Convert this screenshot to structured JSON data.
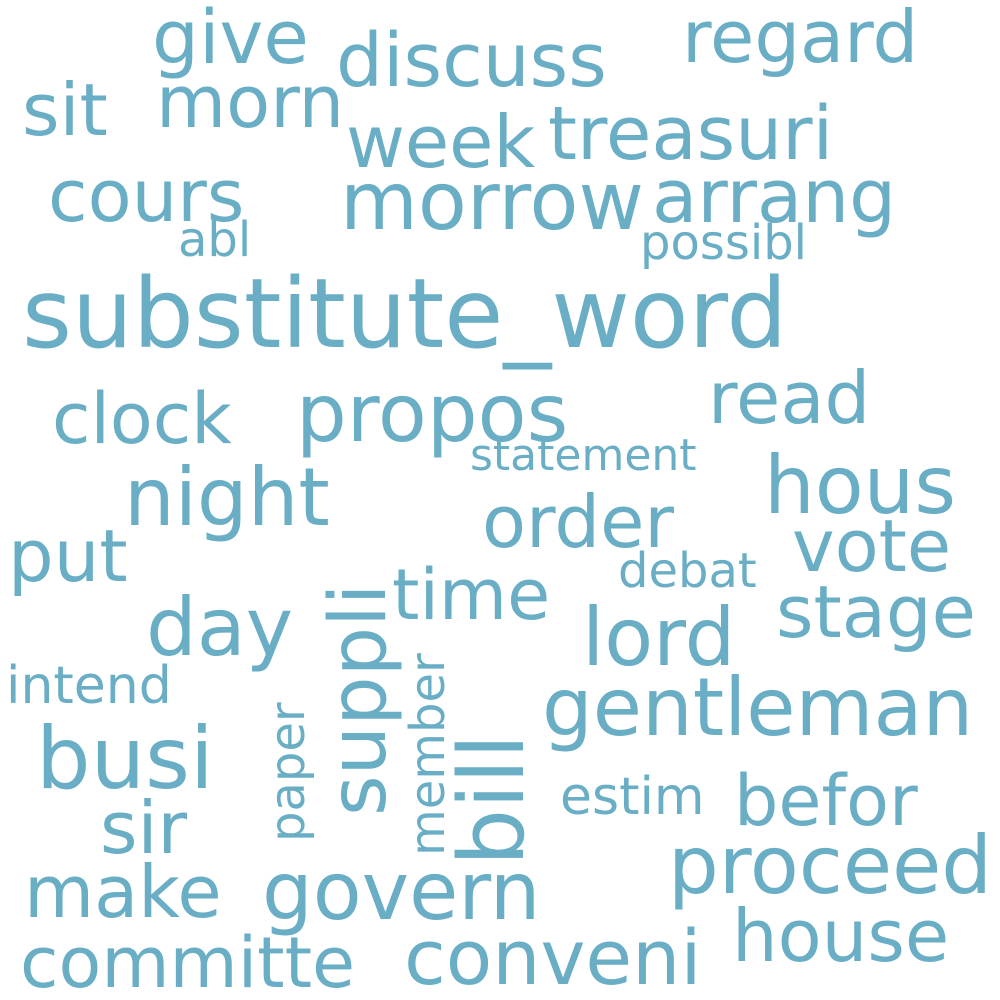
{
  "color": "#6aaec6",
  "words": [
    {
      "id": "substitute_word",
      "text": "substitute_word"
    },
    {
      "id": "discuss",
      "text": "discuss"
    },
    {
      "id": "regard",
      "text": "regard"
    },
    {
      "id": "give",
      "text": "give"
    },
    {
      "id": "sit",
      "text": "sit"
    },
    {
      "id": "morn",
      "text": "morn"
    },
    {
      "id": "week",
      "text": "week"
    },
    {
      "id": "treasuri",
      "text": "treasuri"
    },
    {
      "id": "cours",
      "text": "cours"
    },
    {
      "id": "morrow",
      "text": "morrow"
    },
    {
      "id": "arrang",
      "text": "arrang"
    },
    {
      "id": "abl",
      "text": "abl"
    },
    {
      "id": "possibl",
      "text": "possibl"
    },
    {
      "id": "clock",
      "text": "clock"
    },
    {
      "id": "propos",
      "text": "propos"
    },
    {
      "id": "read",
      "text": "read"
    },
    {
      "id": "statement",
      "text": "statement"
    },
    {
      "id": "night",
      "text": "night"
    },
    {
      "id": "hous",
      "text": "hous"
    },
    {
      "id": "order",
      "text": "order"
    },
    {
      "id": "put",
      "text": "put"
    },
    {
      "id": "vote",
      "text": "vote"
    },
    {
      "id": "suppli",
      "text": "suppli"
    },
    {
      "id": "time",
      "text": "time"
    },
    {
      "id": "debat",
      "text": "debat"
    },
    {
      "id": "day",
      "text": "day"
    },
    {
      "id": "stage",
      "text": "stage"
    },
    {
      "id": "lord",
      "text": "lord"
    },
    {
      "id": "bill",
      "text": "bill"
    },
    {
      "id": "intend",
      "text": "intend"
    },
    {
      "id": "gentleman",
      "text": "gentleman"
    },
    {
      "id": "paper",
      "text": "paper"
    },
    {
      "id": "member",
      "text": "member"
    },
    {
      "id": "busi",
      "text": "busi"
    },
    {
      "id": "estim",
      "text": "estim"
    },
    {
      "id": "befor",
      "text": "befor"
    },
    {
      "id": "sir",
      "text": "sir"
    },
    {
      "id": "proceed",
      "text": "proceed"
    },
    {
      "id": "make",
      "text": "make"
    },
    {
      "id": "govern",
      "text": "govern"
    },
    {
      "id": "house",
      "text": "house"
    },
    {
      "id": "committe",
      "text": "committe"
    },
    {
      "id": "conveni",
      "text": "conveni"
    }
  ]
}
